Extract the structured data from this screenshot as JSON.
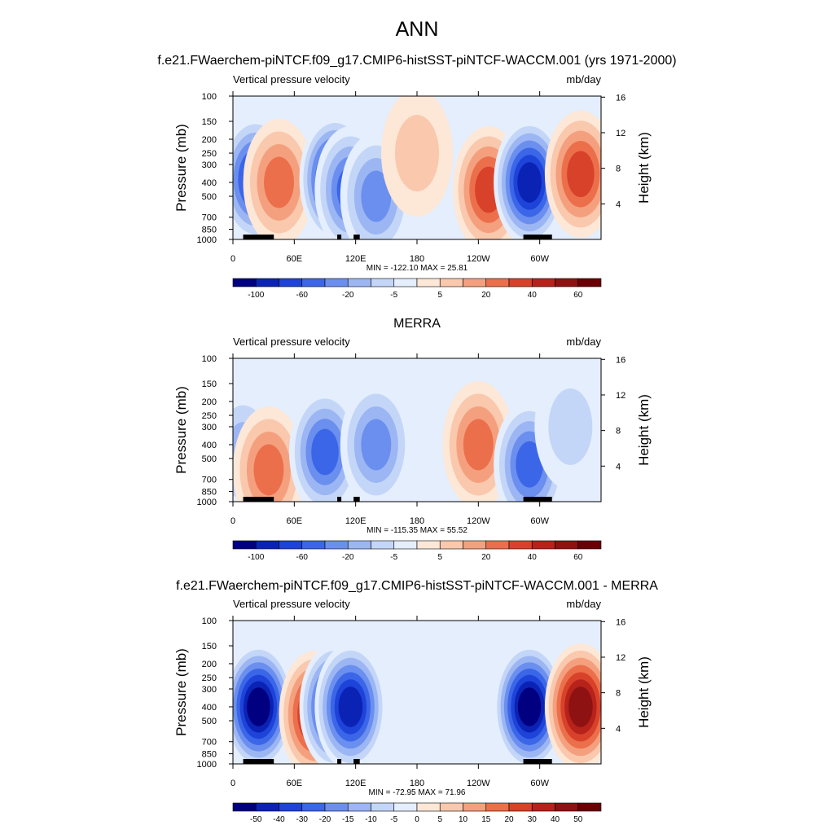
{
  "figure": {
    "title": "ANN",
    "subtitle": "f.e21.FWaerchem-piNTCF.f09_g17.CMIP6-histSST-piNTCF-WACCM.001 (yrs 1971-2000)"
  },
  "chart_data": [
    {
      "type": "heatmap",
      "panel_title": "",
      "left_string": "Vertical pressure velocity",
      "right_string": "mb/day",
      "xlabel": "",
      "ylabel": "Pressure (mb)",
      "ylabel_right": "Height (km)",
      "xticks": [
        "0",
        "60E",
        "120E",
        "180",
        "120W",
        "60W"
      ],
      "xtick_lons": [
        0,
        60,
        120,
        180,
        240,
        300
      ],
      "xlim": [
        0,
        360
      ],
      "yticks": [
        "100",
        "150",
        "200",
        "250",
        "300",
        "400",
        "500",
        "700",
        "850",
        "1000"
      ],
      "ytick_values": [
        100,
        150,
        200,
        250,
        300,
        400,
        500,
        700,
        850,
        1000
      ],
      "ylim": [
        1000,
        100
      ],
      "height_ticks": [
        "4",
        "8",
        "12",
        "16"
      ],
      "height_values": [
        4,
        8,
        12,
        16
      ],
      "stats": "MIN = -122.10  MAX =  25.81",
      "colorbar": {
        "labels": [
          "-100",
          "-60",
          "-20",
          "-5",
          "5",
          "20",
          "40",
          "60"
        ],
        "label_after_box": [
          1,
          3,
          5,
          7,
          9,
          11,
          13,
          15
        ]
      },
      "features": [
        {
          "lon": 22,
          "p": 380,
          "value": -80
        },
        {
          "lon": 45,
          "p": 400,
          "value": 15
        },
        {
          "lon": 100,
          "p": 380,
          "value": -90
        },
        {
          "lon": 115,
          "p": 450,
          "value": -60
        },
        {
          "lon": 140,
          "p": 500,
          "value": -35
        },
        {
          "lon": 180,
          "p": 250,
          "value": 3
        },
        {
          "lon": 250,
          "p": 450,
          "value": 20
        },
        {
          "lon": 290,
          "p": 400,
          "value": -90
        },
        {
          "lon": 340,
          "p": 350,
          "value": 20
        }
      ]
    },
    {
      "type": "heatmap",
      "panel_title": "MERRA",
      "left_string": "Vertical pressure velocity",
      "right_string": "mb/day",
      "xlabel": "",
      "ylabel": "Pressure (mb)",
      "ylabel_right": "Height (km)",
      "xticks": [
        "0",
        "60E",
        "120E",
        "180",
        "120W",
        "60W"
      ],
      "xtick_lons": [
        0,
        60,
        120,
        180,
        240,
        300
      ],
      "xlim": [
        0,
        360
      ],
      "yticks": [
        "100",
        "150",
        "200",
        "250",
        "300",
        "400",
        "500",
        "700",
        "850",
        "1000"
      ],
      "ytick_values": [
        100,
        150,
        200,
        250,
        300,
        400,
        500,
        700,
        850,
        1000
      ],
      "ylim": [
        1000,
        100
      ],
      "height_ticks": [
        "4",
        "8",
        "12",
        "16"
      ],
      "height_values": [
        4,
        8,
        12,
        16
      ],
      "stats": "MIN = -115.35  MAX =  55.52",
      "colorbar": {
        "labels": [
          "-100",
          "-60",
          "-20",
          "-5",
          "5",
          "20",
          "40",
          "60"
        ],
        "label_after_box": [
          1,
          3,
          5,
          7,
          9,
          11,
          13,
          15
        ]
      },
      "features": [
        {
          "lon": 10,
          "p": 450,
          "value": -20
        },
        {
          "lon": 35,
          "p": 600,
          "value": 10
        },
        {
          "lon": 90,
          "p": 450,
          "value": -45
        },
        {
          "lon": 140,
          "p": 400,
          "value": -40
        },
        {
          "lon": 240,
          "p": 400,
          "value": 12
        },
        {
          "lon": 290,
          "p": 550,
          "value": -60
        },
        {
          "lon": 330,
          "p": 300,
          "value": -8
        }
      ]
    },
    {
      "type": "heatmap",
      "panel_title": "f.e21.FWaerchem-piNTCF.f09_g17.CMIP6-histSST-piNTCF-WACCM.001 - MERRA",
      "left_string": "Vertical pressure velocity",
      "right_string": "mb/day",
      "xlabel": "",
      "ylabel": "Pressure (mb)",
      "ylabel_right": "Height (km)",
      "xticks": [
        "0",
        "60E",
        "120E",
        "180",
        "120W",
        "60W"
      ],
      "xtick_lons": [
        0,
        60,
        120,
        180,
        240,
        300
      ],
      "xlim": [
        0,
        360
      ],
      "yticks": [
        "100",
        "150",
        "200",
        "250",
        "300",
        "400",
        "500",
        "700",
        "850",
        "1000"
      ],
      "ytick_values": [
        100,
        150,
        200,
        250,
        300,
        400,
        500,
        700,
        850,
        1000
      ],
      "ylim": [
        1000,
        100
      ],
      "height_ticks": [
        "4",
        "8",
        "12",
        "16"
      ],
      "height_values": [
        4,
        8,
        12,
        16
      ],
      "stats": "MIN = -72.95  MAX =  71.96",
      "colorbar": {
        "labels": [
          "-50",
          "-40",
          "-30",
          "-20",
          "-15",
          "-10",
          "-5",
          "0",
          "5",
          "10",
          "15",
          "20",
          "30",
          "40",
          "50"
        ],
        "label_after_box": [
          1,
          2,
          3,
          4,
          5,
          6,
          7,
          8,
          9,
          10,
          11,
          12,
          13,
          14,
          15
        ]
      },
      "features": [
        {
          "lon": 25,
          "p": 400,
          "value": -50
        },
        {
          "lon": 80,
          "p": 450,
          "value": 25
        },
        {
          "lon": 100,
          "p": 400,
          "value": -40
        },
        {
          "lon": 115,
          "p": 400,
          "value": -40
        },
        {
          "lon": 290,
          "p": 400,
          "value": -50
        },
        {
          "lon": 340,
          "p": 400,
          "value": 30
        }
      ]
    }
  ],
  "colormap": [
    "#000080",
    "#0b23b5",
    "#1d43d8",
    "#3b66e8",
    "#6b8fee",
    "#9cb6f3",
    "#c4d6f8",
    "#e4eefd",
    "#fde7d6",
    "#f9c8ad",
    "#f4a07e",
    "#ec6f4c",
    "#d8422a",
    "#b7221b",
    "#8f1212",
    "#6a0006"
  ],
  "topography_color": "#000000"
}
